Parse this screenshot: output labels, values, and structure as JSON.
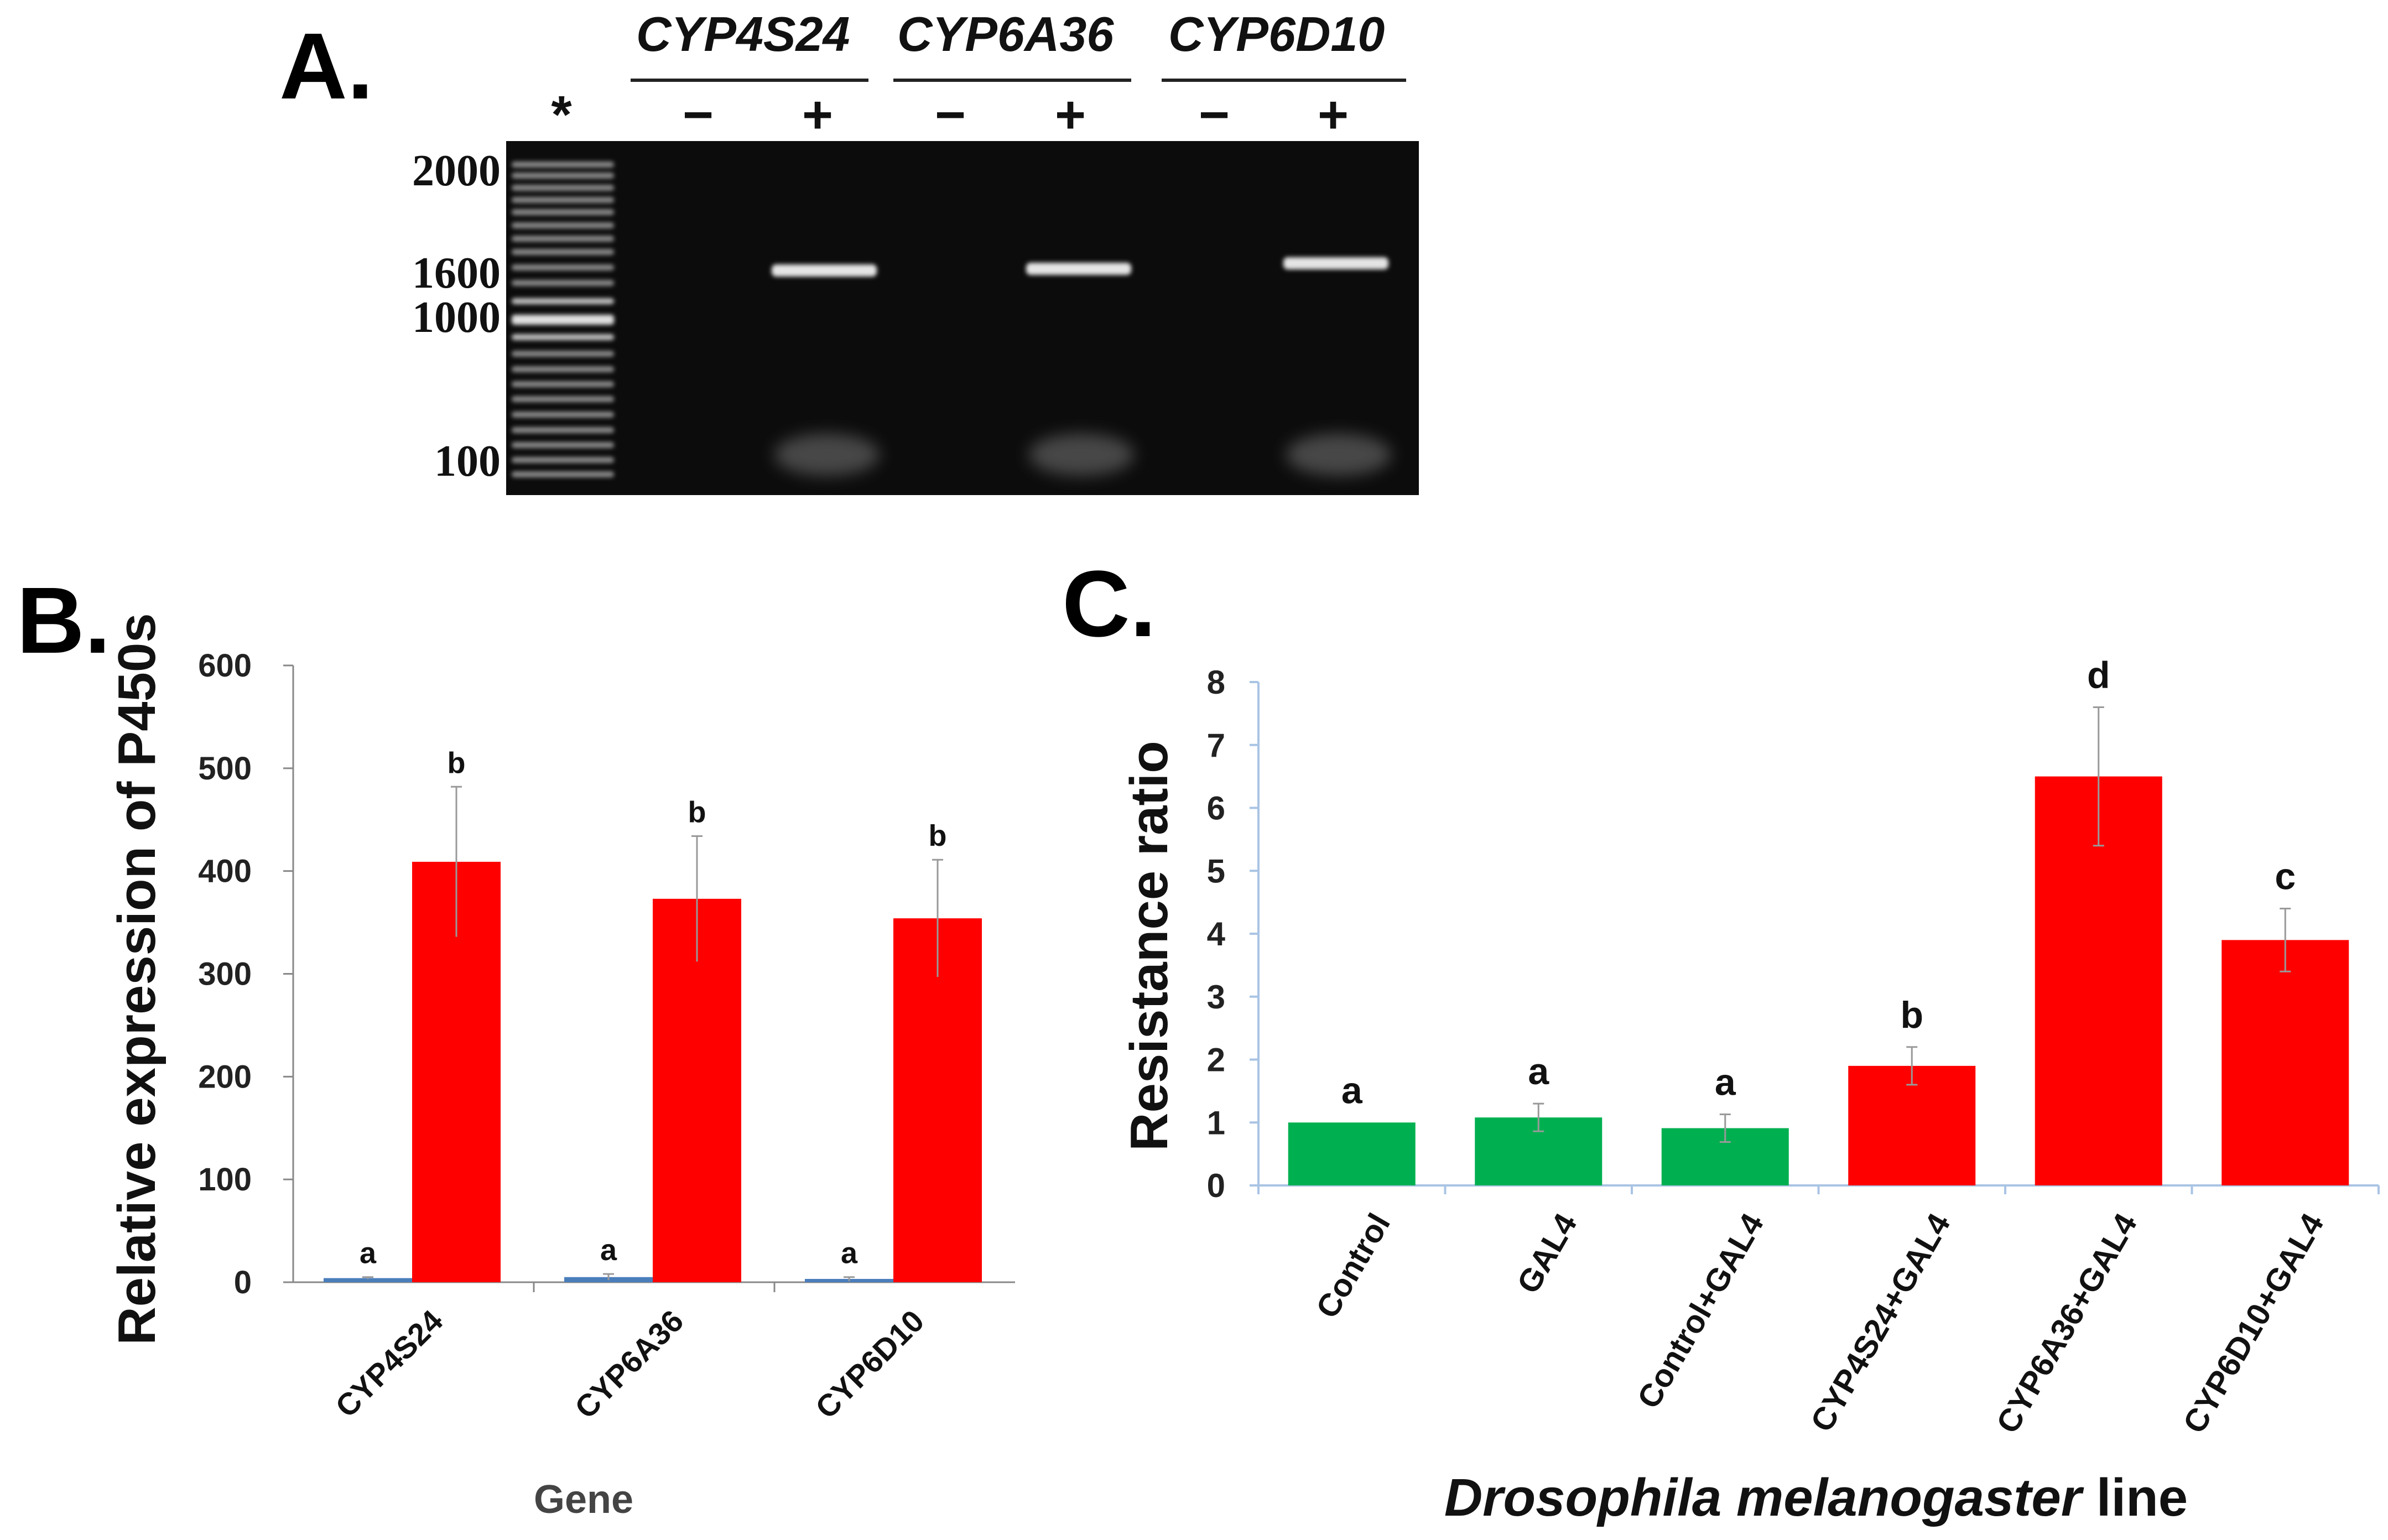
{
  "panels": {
    "a": "A.",
    "b": "B.",
    "c": "C."
  },
  "gel": {
    "marker_label": "*",
    "genes": [
      "CYP4S24",
      "CYP6A36",
      "CYP6D10"
    ],
    "lane_signs": [
      "−",
      "+",
      "−",
      "+",
      "−",
      "+"
    ],
    "ladder_labels": [
      "2000",
      "1600",
      "1000",
      "100"
    ]
  },
  "chart_data": [
    {
      "type": "bar",
      "categories": [
        "CYP4S24",
        "CYP6A36",
        "CYP6D10"
      ],
      "series": [
        {
          "values": [
            4,
            5,
            3
          ],
          "errors": [
            1,
            3,
            2
          ],
          "color": "#4a7ebb",
          "letters": [
            "a",
            "a",
            "a"
          ]
        },
        {
          "values": [
            409,
            373,
            354
          ],
          "errors": [
            73,
            61,
            57
          ],
          "color": "#ff0000",
          "letters": [
            "b",
            "b",
            "b"
          ]
        }
      ],
      "xlabel": "Gene",
      "ylabel": "Relative expression of P450s",
      "ylim": [
        0,
        600
      ],
      "yticks": [
        "0",
        "100",
        "200",
        "300",
        "400",
        "500",
        "600"
      ],
      "grid": false
    },
    {
      "type": "bar",
      "categories": [
        "Control",
        "GAL4",
        "Control+GAL4",
        "CYP4S24+GAL4",
        "CYP6A36+GAL4",
        "CYP6D10+GAL4"
      ],
      "values": [
        1.0,
        1.08,
        0.91,
        1.9,
        6.5,
        3.9
      ],
      "errors": [
        0,
        0.22,
        0.22,
        0.3,
        1.1,
        0.5
      ],
      "colors": [
        "#00b050",
        "#00b050",
        "#00b050",
        "#ff0000",
        "#ff0000",
        "#ff0000"
      ],
      "letters": [
        "a",
        "a",
        "a",
        "b",
        "d",
        "c"
      ],
      "xlabel_italic": "Drosophila melanogaster",
      "xlabel_rest": " line",
      "ylabel": "Resistance ratio",
      "ylim": [
        0,
        8
      ],
      "yticks": [
        "0",
        "1",
        "2",
        "3",
        "4",
        "5",
        "6",
        "7",
        "8"
      ],
      "grid": false
    }
  ]
}
